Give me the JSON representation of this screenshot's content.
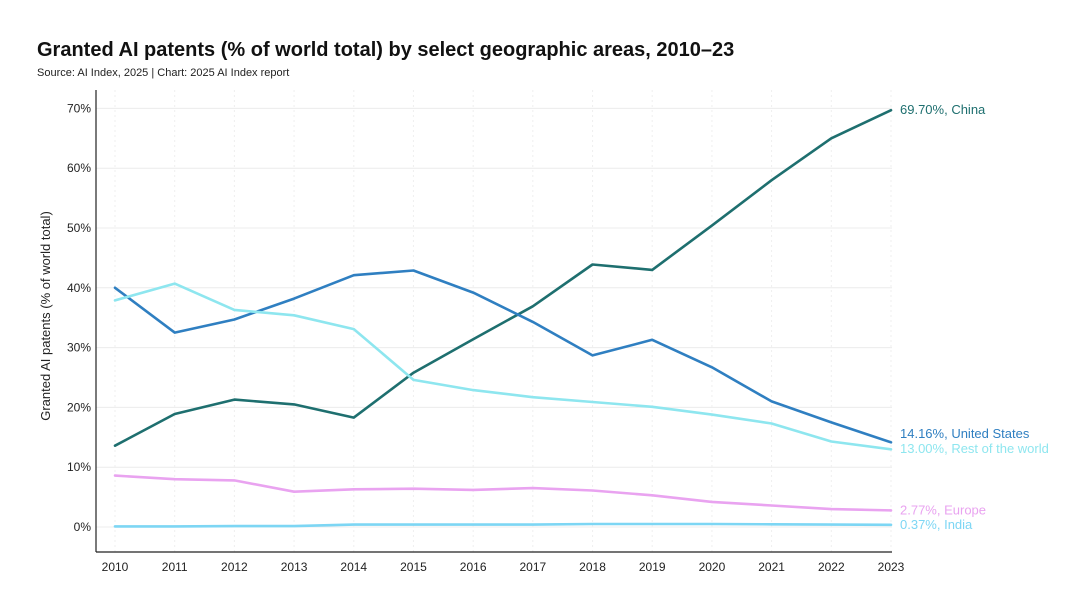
{
  "chart_data": {
    "type": "line",
    "title": "Granted AI patents (% of world total) by select geographic areas, 2010–23",
    "subtitle": "Source: AI Index, 2025 | Chart: 2025 AI Index report",
    "xlabel": "",
    "ylabel": "Granted AI patents (% of world total)",
    "ylim": [
      0,
      70
    ],
    "yticks": [
      0,
      10,
      20,
      30,
      40,
      50,
      60,
      70
    ],
    "ytick_labels": [
      "0%",
      "10%",
      "20%",
      "30%",
      "40%",
      "50%",
      "60%",
      "70%"
    ],
    "x": [
      "2010",
      "2011",
      "2012",
      "2013",
      "2014",
      "2015",
      "2016",
      "2017",
      "2018",
      "2019",
      "2020",
      "2021",
      "2022",
      "2023"
    ],
    "grid": true,
    "series": [
      {
        "name": "China",
        "color": "#1e6f6f",
        "end_label": "69.70%, China",
        "values": [
          13.6,
          18.9,
          21.3,
          20.5,
          18.3,
          25.8,
          31.4,
          36.9,
          43.9,
          43.0,
          50.4,
          58.0,
          65.0,
          69.7
        ]
      },
      {
        "name": "United States",
        "color": "#2f7fc1",
        "end_label": "14.16%, United States",
        "values": [
          40.0,
          32.5,
          34.7,
          38.2,
          42.1,
          42.9,
          39.2,
          34.3,
          28.7,
          31.3,
          26.7,
          21.0,
          17.5,
          14.16
        ]
      },
      {
        "name": "Rest of the world",
        "color": "#8ee6ef",
        "end_label": "13.00%, Rest of the world",
        "values": [
          37.9,
          40.7,
          36.3,
          35.4,
          33.1,
          24.6,
          22.9,
          21.7,
          20.9,
          20.1,
          18.8,
          17.3,
          14.3,
          13.0
        ]
      },
      {
        "name": "Europe",
        "color": "#e9a3f0",
        "end_label": "2.77%, Europe",
        "values": [
          8.6,
          8.0,
          7.8,
          5.9,
          6.3,
          6.4,
          6.2,
          6.5,
          6.1,
          5.3,
          4.2,
          3.6,
          3.0,
          2.77
        ]
      },
      {
        "name": "India",
        "color": "#7dd6f4",
        "end_label": "0.37%, India",
        "values": [
          0.1,
          0.1,
          0.15,
          0.15,
          0.4,
          0.4,
          0.4,
          0.4,
          0.5,
          0.5,
          0.5,
          0.45,
          0.4,
          0.37
        ]
      }
    ]
  }
}
